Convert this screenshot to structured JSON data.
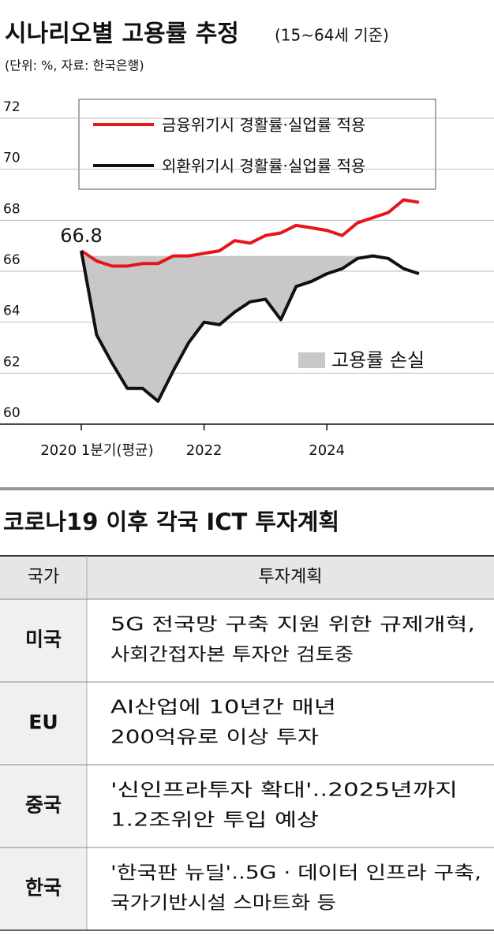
{
  "chart_data": {
    "type": "line",
    "title": "시나리오별 고용률 추정",
    "subtitle": "(15~64세 기준)",
    "source": "(단위: %, 자료: 한국은행)",
    "annotation": "66.8",
    "categories": [
      "2020 1분기(평균)",
      null,
      null,
      null,
      null,
      null,
      null,
      null,
      "2022",
      null,
      null,
      null,
      null,
      null,
      null,
      null,
      "2024",
      null,
      null,
      null,
      null,
      null,
      null
    ],
    "series": [
      {
        "name": "금융위기시 경활률·실업률 적용",
        "color": "#e8141b",
        "values": [
          66.8,
          66.4,
          66.2,
          66.2,
          66.3,
          66.3,
          66.6,
          66.6,
          66.7,
          66.8,
          67.2,
          67.1,
          67.4,
          67.5,
          67.8,
          67.7,
          67.6,
          67.4,
          67.9,
          68.1,
          68.3,
          68.8,
          68.7
        ]
      },
      {
        "name": "외환위기시 경활률·실업률 적용",
        "color": "#111111",
        "values": [
          66.8,
          63.5,
          62.4,
          61.4,
          61.4,
          60.9,
          62.1,
          63.2,
          64.0,
          63.9,
          64.4,
          64.8,
          64.9,
          64.1,
          65.4,
          65.6,
          65.9,
          66.1,
          66.5,
          66.6,
          66.5,
          66.1,
          65.9
        ]
      }
    ],
    "loss_area": {
      "label": "고용률 손실",
      "baseline": 66.6,
      "color": "#c8c8c8"
    },
    "ylim": [
      60,
      72
    ],
    "yticks": [
      60,
      62,
      64,
      66,
      68,
      70,
      72
    ],
    "grid": true
  },
  "table": {
    "title": "코로나19 이후 각국 ICT 투자계획",
    "header": [
      "국가",
      "투자계획"
    ],
    "rows": [
      {
        "country": "미국",
        "plan": [
          "5G 전국망 구축 지원 위한 규제개혁,",
          "사회간접자본 투자안 검토중"
        ]
      },
      {
        "country": "EU",
        "plan": [
          "AI산업에 10년간 매년",
          "200억유로 이상 투자"
        ]
      },
      {
        "country": "중국",
        "plan": [
          "'신인프라투자 확대'..2025년까지",
          "1.2조위안 투입 예상"
        ]
      },
      {
        "country": "한국",
        "plan": [
          "'한국판 뉴딜'..5G · 데이터 인프라 구축,",
          "국가기반시설 스마트화 등"
        ]
      }
    ]
  }
}
